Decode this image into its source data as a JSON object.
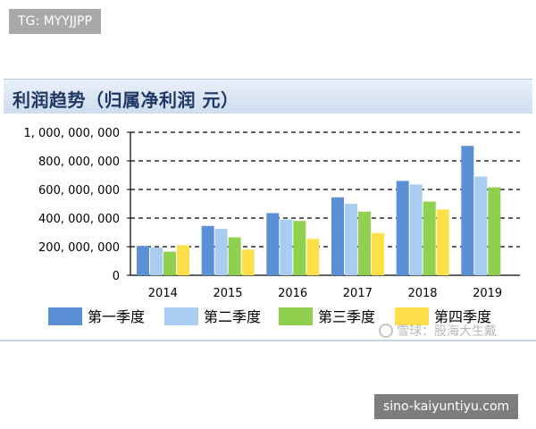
{
  "top_tag": "TG: MYYJJPP",
  "bottom_tag": "sino-kaiyuntiyu.com",
  "watermark": {
    "text": "雪球：股海大生戴",
    "icon": "snowball-logo-icon"
  },
  "colors": {
    "q1": "#5b8fd6",
    "q2": "#a9cdf0",
    "q3": "#8fd14f",
    "q4": "#ffe04a",
    "title": "#1f3766"
  },
  "chart_data": {
    "type": "bar",
    "title": "利润趋势（归属净利润 元）",
    "categories": [
      "2014",
      "2015",
      "2016",
      "2017",
      "2018",
      "2019"
    ],
    "series": [
      {
        "name": "第一季度",
        "values": [
          205000000,
          345000000,
          435000000,
          545000000,
          660000000,
          905000000
        ]
      },
      {
        "name": "第二季度",
        "values": [
          195000000,
          325000000,
          390000000,
          500000000,
          635000000,
          690000000
        ]
      },
      {
        "name": "第三季度",
        "values": [
          165000000,
          265000000,
          380000000,
          445000000,
          515000000,
          615000000
        ]
      },
      {
        "name": "第四季度",
        "values": [
          210000000,
          180000000,
          255000000,
          295000000,
          460000000,
          null
        ]
      }
    ],
    "ylim": [
      0,
      1000000000
    ],
    "yticks": [
      "0",
      "200, 000, 000",
      "400, 000, 000",
      "600, 000, 000",
      "800, 000, 000",
      "1, 000, 000, 000"
    ],
    "ytick_values": [
      0,
      200000000,
      400000000,
      600000000,
      800000000,
      1000000000
    ],
    "grid": true,
    "legend_position": "bottom"
  }
}
